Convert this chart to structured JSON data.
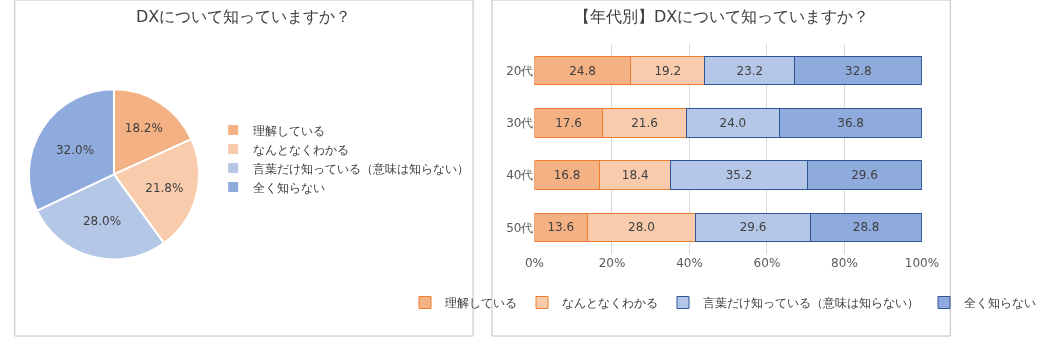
{
  "chart_data": [
    {
      "type": "pie",
      "title": "DXについて知っていますか？",
      "categories": [
        "理解している",
        "なんとなくわかる",
        "言葉だけ知っている（意味は知らない）",
        "全く知らない"
      ],
      "values": [
        18.2,
        21.8,
        28.0,
        32.0
      ],
      "value_labels": [
        "18.2%",
        "21.8%",
        "28.0%",
        "32.0%"
      ],
      "colors": [
        "#f4b183",
        "#f8cbad",
        "#b4c7e7",
        "#8faadc"
      ],
      "legend": "right"
    },
    {
      "type": "bar",
      "title": "【年代別】DXについて知っていますか？",
      "orientation": "horizontal",
      "stacked": true,
      "categories": [
        "20代",
        "30代",
        "40代",
        "50代"
      ],
      "xlim": [
        0,
        100
      ],
      "xticks": [
        {
          "value": 0,
          "label": "0%"
        },
        {
          "value": 20,
          "label": "20%"
        },
        {
          "value": 40,
          "label": "40%"
        },
        {
          "value": 60,
          "label": "60%"
        },
        {
          "value": 80,
          "label": "80%"
        },
        {
          "value": 100,
          "label": "100%"
        }
      ],
      "grid": "x",
      "legend": "bottom",
      "series": [
        {
          "name": "理解している",
          "color": "#f4b183",
          "values": [
            24.8,
            17.6,
            16.8,
            13.6
          ],
          "value_labels": [
            "24.8",
            "17.6",
            "16.8",
            "13.6"
          ]
        },
        {
          "name": "なんとなくわかる",
          "color": "#f8cbad",
          "values": [
            19.2,
            21.6,
            18.4,
            28.0
          ],
          "value_labels": [
            "19.2",
            "21.6",
            "18.4",
            "28.0"
          ]
        },
        {
          "name": "言葉だけ知っている（意味は知らない）",
          "color": "#b4c7e7",
          "values": [
            23.2,
            24.0,
            35.2,
            29.6
          ],
          "value_labels": [
            "23.2",
            "24.0",
            "35.2",
            "29.6"
          ]
        },
        {
          "name": "全く知らない",
          "color": "#8faadc",
          "values": [
            32.8,
            36.8,
            29.6,
            28.8
          ],
          "value_labels": [
            "32.8",
            "36.8",
            "29.6",
            "28.8"
          ]
        }
      ]
    }
  ]
}
